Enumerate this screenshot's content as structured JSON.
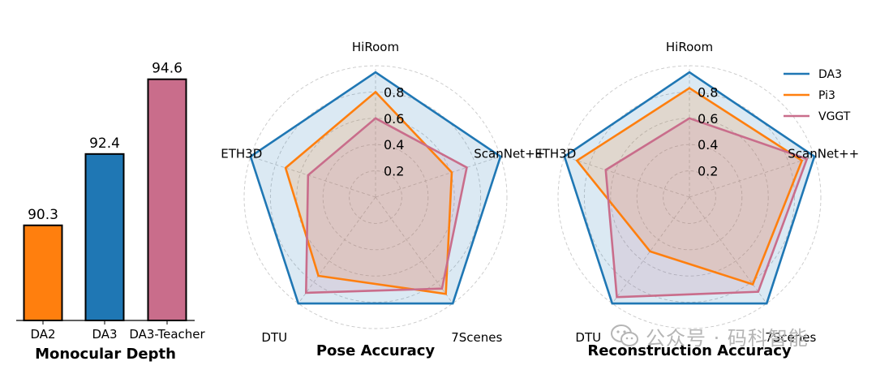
{
  "colors": {
    "DA3": "#1f77b4",
    "Pi3": "#ff7f0e",
    "VGGT": "#c96d8b"
  },
  "chart_data": [
    {
      "type": "bar",
      "title": "Monocular Depth",
      "categories": [
        "DA2",
        "DA3",
        "DA3-Teacher"
      ],
      "values": [
        90.3,
        92.4,
        94.6
      ],
      "value_labels": [
        "90.3",
        "92.4",
        "94.6"
      ],
      "bar_colors": [
        "#ff7f0e",
        "#1f77b4",
        "#c96d8b"
      ],
      "ylim": [
        87.5,
        95.5
      ],
      "grid": false
    },
    {
      "type": "radar",
      "title": "Pose Accuracy",
      "axes": [
        "HiRoom",
        "ScanNet++",
        "7Scenes",
        "DTU",
        "ETH3D"
      ],
      "radial_ticks": [
        "0.2",
        "0.4",
        "0.6",
        "0.8"
      ],
      "rlim": [
        0,
        1
      ],
      "grid": true,
      "series": [
        {
          "name": "DA3",
          "values": [
            0.95,
            1.0,
            1.0,
            1.0,
            1.0
          ]
        },
        {
          "name": "Pi3",
          "values": [
            0.8,
            0.61,
            0.91,
            0.74,
            0.72
          ]
        },
        {
          "name": "VGGT",
          "values": [
            0.6,
            0.73,
            0.86,
            0.9,
            0.54
          ]
        }
      ]
    },
    {
      "type": "radar",
      "title": "Reconstruction Accuracy",
      "axes": [
        "HiRoom",
        "ScanNet++",
        "7Scenes",
        "DTU",
        "ETH3D"
      ],
      "radial_ticks": [
        "0.2",
        "0.4",
        "0.6",
        "0.8"
      ],
      "rlim": [
        0,
        1
      ],
      "grid": true,
      "legend": {
        "position": "top-right",
        "entries": [
          "DA3",
          "Pi3",
          "VGGT"
        ]
      },
      "series": [
        {
          "name": "DA3",
          "values": [
            0.95,
            1.0,
            1.0,
            1.0,
            1.0
          ]
        },
        {
          "name": "Pi3",
          "values": [
            0.83,
            0.9,
            0.82,
            0.51,
            0.9
          ]
        },
        {
          "name": "VGGT",
          "values": [
            0.6,
            0.94,
            0.89,
            0.94,
            0.67
          ]
        }
      ]
    }
  ],
  "watermark": {
    "text": "公众号 · 码科智能"
  }
}
